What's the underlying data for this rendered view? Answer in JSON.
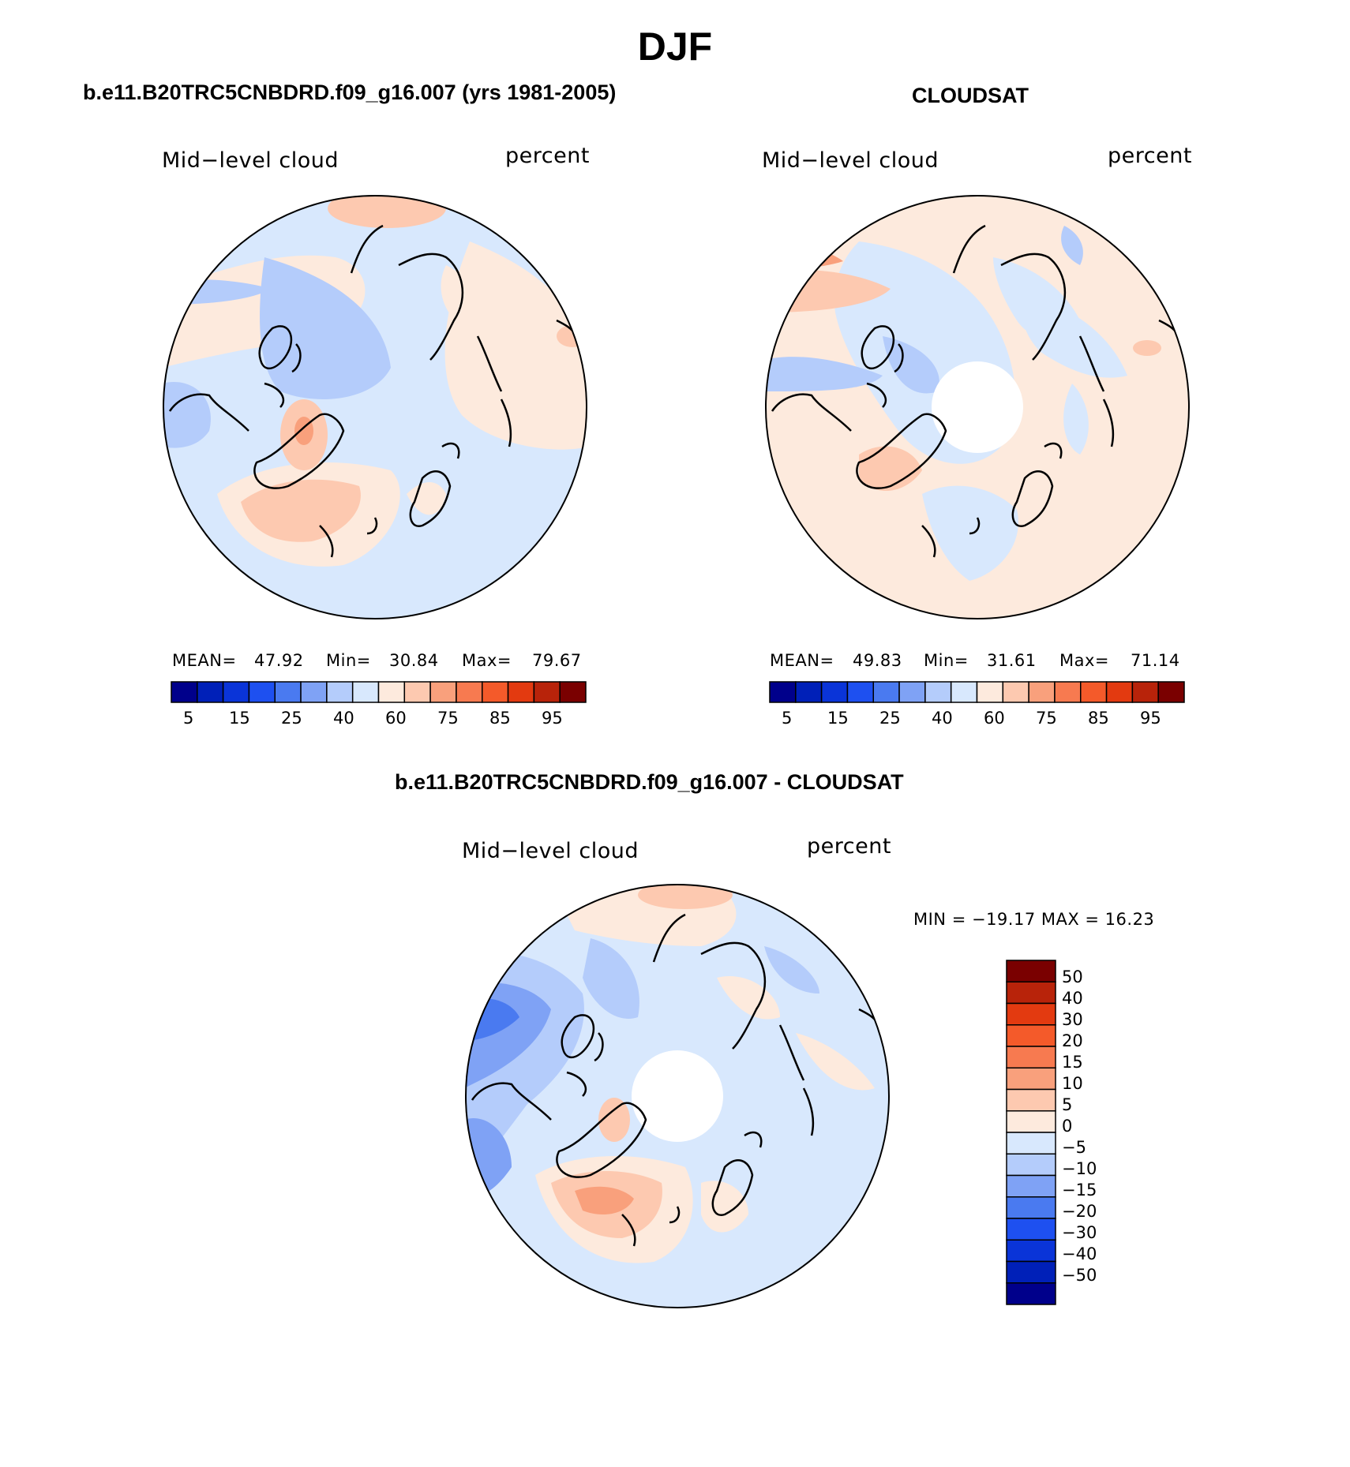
{
  "figure": {
    "season_title": "DJF",
    "colors": {
      "land_outline": "#000000",
      "missing": "#ffffff",
      "abs_scale": [
        "#00008b",
        "#0020b8",
        "#0a34d8",
        "#1e50f0",
        "#4a7af0",
        "#7fa2f5",
        "#b4ccfb",
        "#d8e8fd",
        "#fdeadd",
        "#fdc9b0",
        "#f9a07c",
        "#f77a50",
        "#f45a2a",
        "#e33a10",
        "#b8230a",
        "#7a0000"
      ],
      "diff_scale": [
        "#00008b",
        "#0020b8",
        "#0a34d8",
        "#1e50f0",
        "#4a7af0",
        "#7fa2f5",
        "#b4ccfb",
        "#d8e8fd",
        "#fdeadd",
        "#fdc9b0",
        "#f9a07c",
        "#f77a50",
        "#f45a2a",
        "#e33a10",
        "#b8230a",
        "#7a0000"
      ]
    }
  },
  "panels": [
    {
      "title": "b.e11.B20TRC5CNBDRD.f09_g16.007 (yrs 1981-2005)",
      "variable_label": "Mid−level cloud",
      "units_label": "percent",
      "mean_label": "MEAN=",
      "mean_value": "47.92",
      "min_label": "Min=",
      "min_value": "30.84",
      "max_label": "Max=",
      "max_value": "79.67",
      "colorbar_ticks": [
        "5",
        "15",
        "25",
        "40",
        "60",
        "75",
        "85",
        "95"
      ]
    },
    {
      "title": "CLOUDSAT",
      "variable_label": "Mid−level cloud",
      "units_label": "percent",
      "mean_label": "MEAN=",
      "mean_value": "49.83",
      "min_label": "Min=",
      "min_value": "31.61",
      "max_label": "Max=",
      "max_value": "71.14",
      "colorbar_ticks": [
        "5",
        "15",
        "25",
        "40",
        "60",
        "75",
        "85",
        "95"
      ]
    }
  ],
  "difference_panel": {
    "title": "b.e11.B20TRC5CNBDRD.f09_g16.007 - CLOUDSAT",
    "variable_label": "Mid−level cloud",
    "units_label": "percent",
    "minmax_text": "MIN = −19.17 MAX =   16.23",
    "colorbar_ticks": [
      "50",
      "40",
      "30",
      "20",
      "15",
      "10",
      "5",
      "0",
      "−5",
      "−10",
      "−15",
      "−20",
      "−30",
      "−40",
      "−50"
    ]
  }
}
